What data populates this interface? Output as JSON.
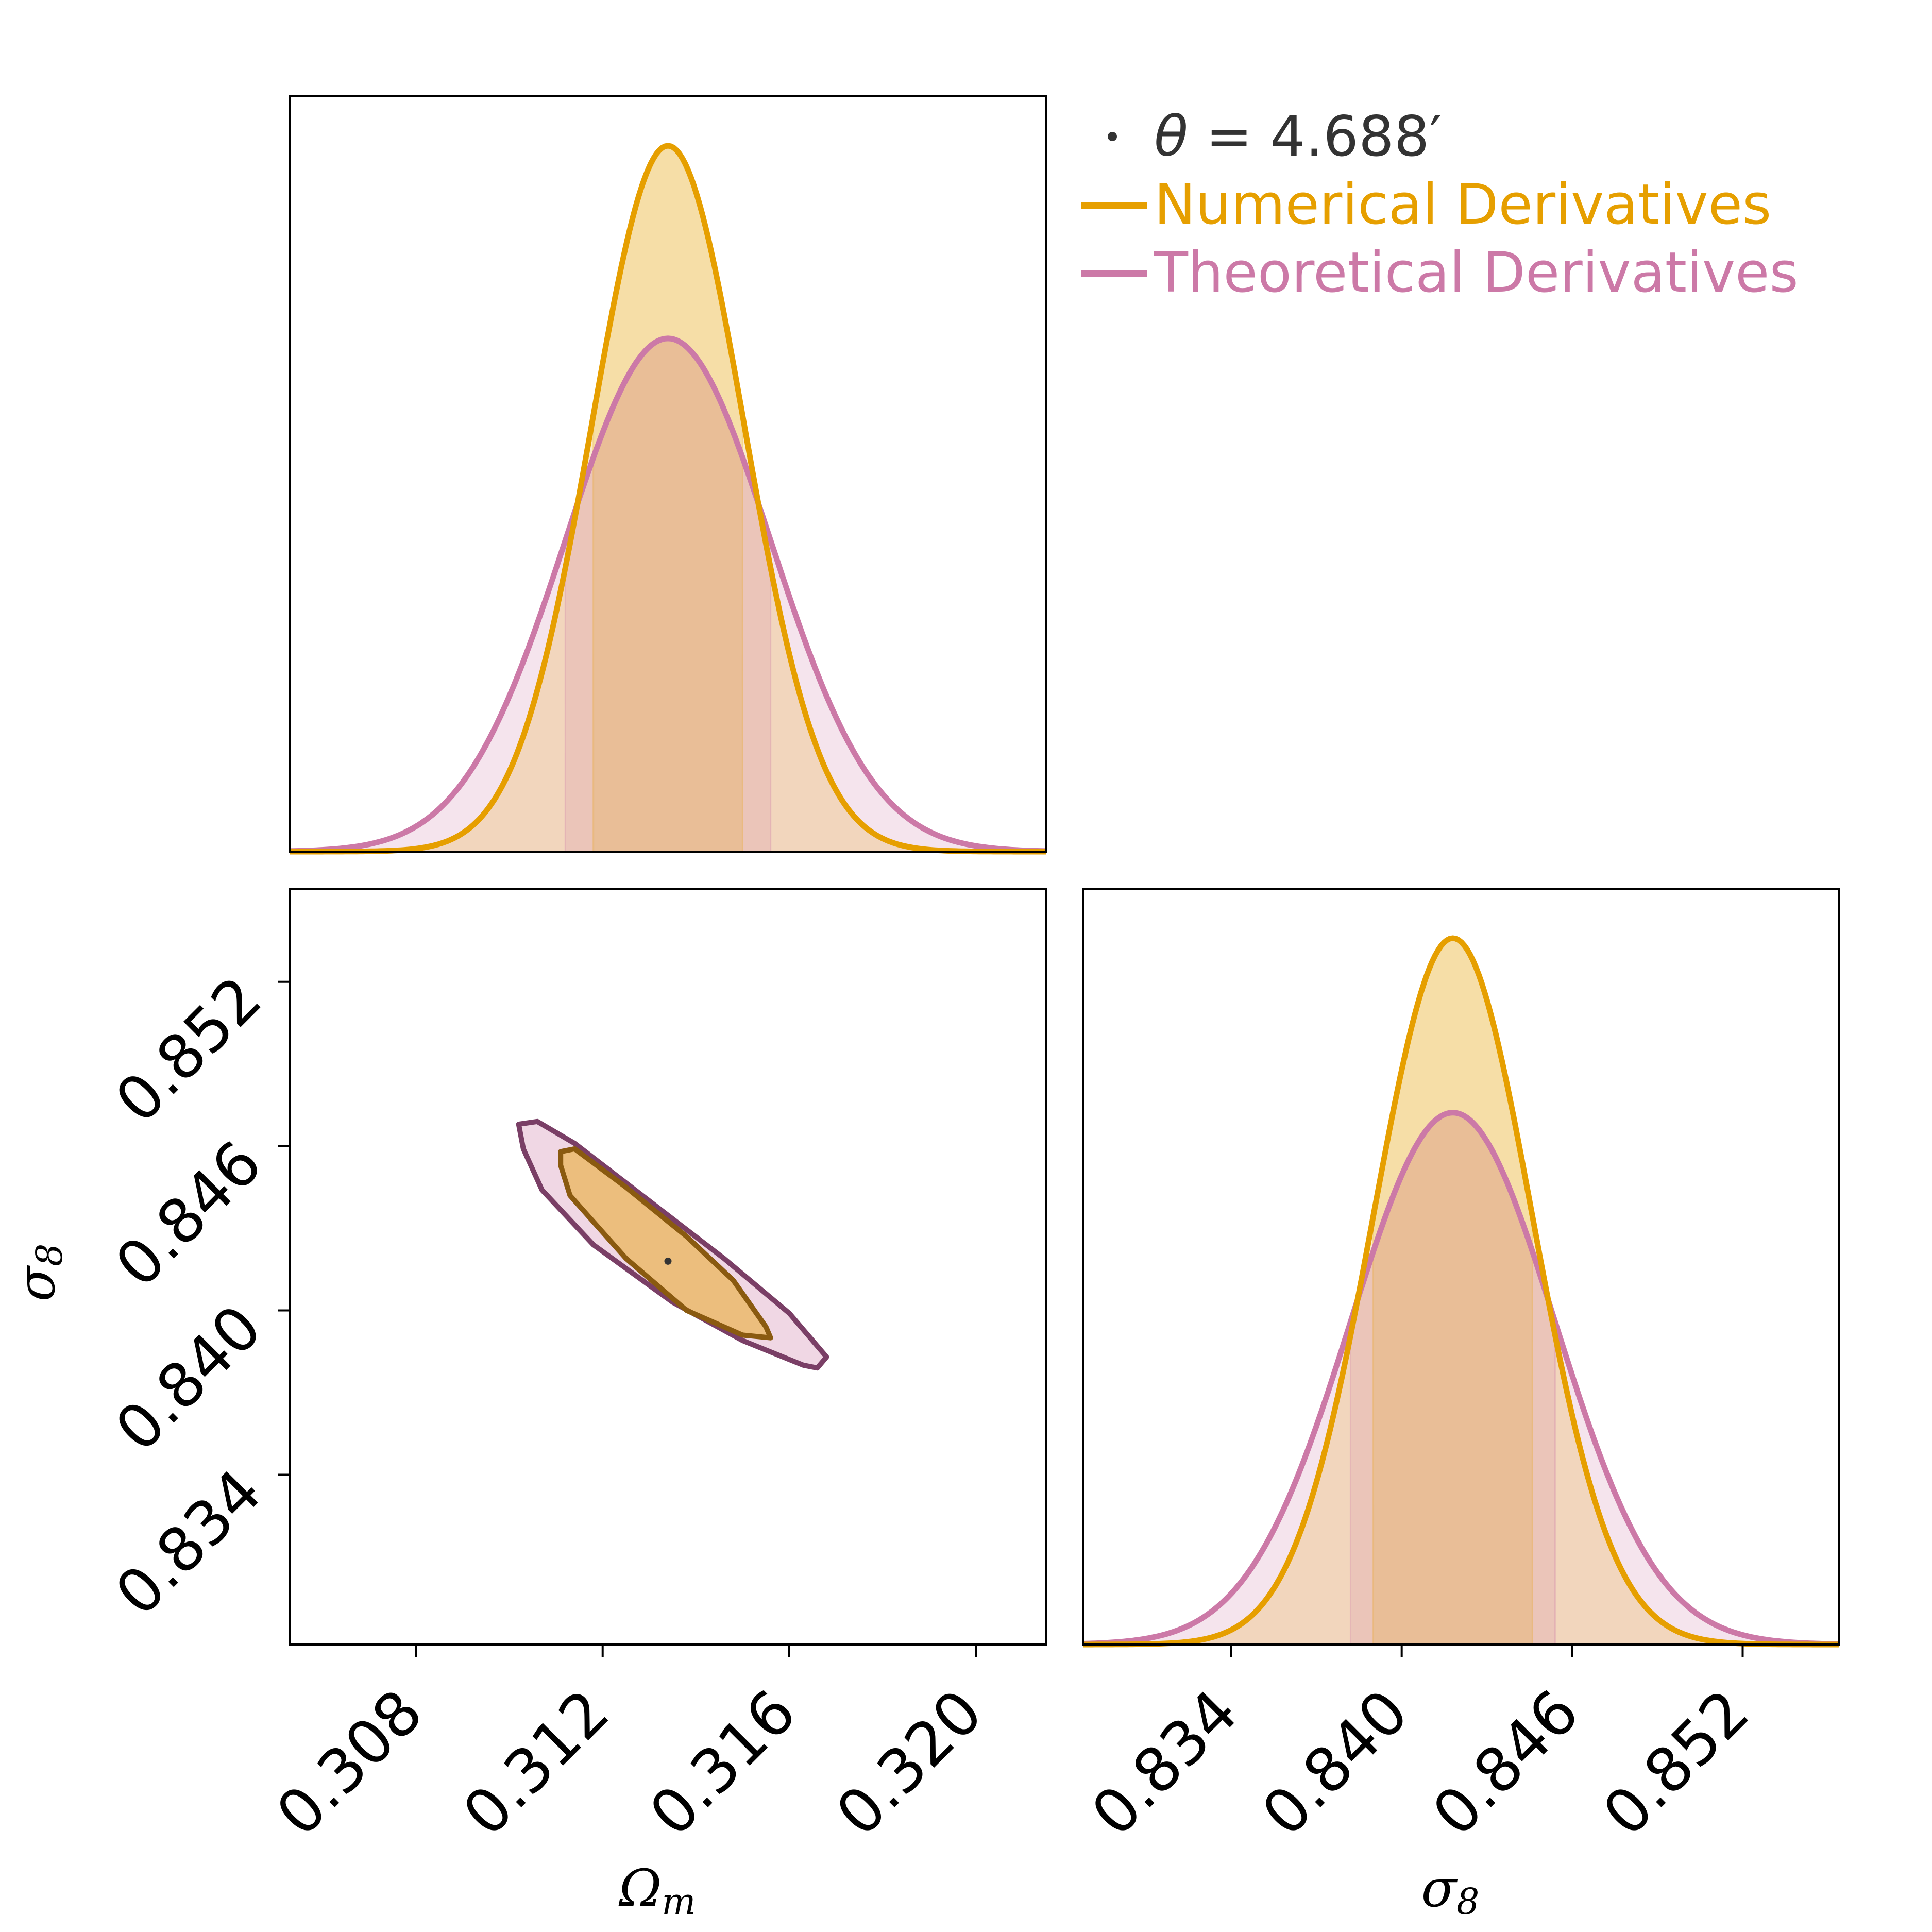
{
  "colors": {
    "numerical": "#E69F00",
    "theoretical": "#CC79A7",
    "fiducial_marker": "#333333",
    "axes": "#000000"
  },
  "legend": {
    "marker_label_symbol": "θ",
    "marker_label_rest": " = 4.688′",
    "numerical_label": "Numerical Derivatives",
    "theoretical_label": "Theoretical Derivatives"
  },
  "chart_data": [
    {
      "type": "line",
      "panel": "marginal-omega-m",
      "params": {
        "omega_m": {
          "xlim": [
            0.3053,
            0.3215
          ]
        }
      },
      "series": [
        {
          "name": "Numerical Derivatives",
          "mean": 0.3134,
          "sigma": 0.00163,
          "peak": 1.0,
          "interval_68": [
            0.3118,
            0.315
          ]
        },
        {
          "name": "Theoretical Derivatives",
          "mean": 0.3134,
          "sigma": 0.0022,
          "peak": 0.727,
          "interval_68": [
            0.3112,
            0.3156
          ]
        }
      ]
    },
    {
      "type": "scatter",
      "panel": "joint-omega-m-sigma-8",
      "xlabel": "Ω_m",
      "ylabel": "σ_8",
      "xlim": [
        0.3053,
        0.3215
      ],
      "ylim": [
        0.8278,
        0.8554
      ],
      "x_ticks": [
        "0.308",
        "0.312",
        "0.316",
        "0.320"
      ],
      "y_ticks": [
        "0.834",
        "0.840",
        "0.846",
        "0.852"
      ],
      "fiducial": {
        "omega_m": 0.3134,
        "sigma_8": 0.8418
      },
      "series": [
        {
          "name": "Numerical Derivatives",
          "contour": [
            [
              0.3111,
              0.8458
            ],
            [
              0.3114,
              0.8459
            ],
            [
              0.3125,
              0.8445
            ],
            [
              0.3138,
              0.8427
            ],
            [
              0.3148,
              0.8411
            ],
            [
              0.3155,
              0.8394
            ],
            [
              0.3156,
              0.839
            ],
            [
              0.315,
              0.8391
            ],
            [
              0.3138,
              0.84
            ],
            [
              0.3125,
              0.8419
            ],
            [
              0.3113,
              0.8442
            ],
            [
              0.3111,
              0.8453
            ]
          ]
        },
        {
          "name": "Theoretical Derivatives",
          "contour": [
            [
              0.3102,
              0.8468
            ],
            [
              0.3106,
              0.8469
            ],
            [
              0.3114,
              0.8461
            ],
            [
              0.313,
              0.844
            ],
            [
              0.3146,
              0.8419
            ],
            [
              0.316,
              0.8399
            ],
            [
              0.3168,
              0.8383
            ],
            [
              0.3166,
              0.8379
            ],
            [
              0.3163,
              0.838
            ],
            [
              0.315,
              0.8389
            ],
            [
              0.3135,
              0.8403
            ],
            [
              0.3118,
              0.8424
            ],
            [
              0.3107,
              0.8444
            ],
            [
              0.3103,
              0.8459
            ]
          ]
        }
      ]
    },
    {
      "type": "line",
      "panel": "marginal-sigma-8",
      "xlabel": "σ_8",
      "xlim": [
        0.8288,
        0.8554
      ],
      "x_ticks": [
        "0.834",
        "0.840",
        "0.846",
        "0.852"
      ],
      "series": [
        {
          "name": "Numerical Derivatives",
          "mean": 0.8418,
          "sigma": 0.0028,
          "peak": 1.0,
          "interval_68": [
            0.839,
            0.8446
          ]
        },
        {
          "name": "Theoretical Derivatives",
          "mean": 0.8418,
          "sigma": 0.0036,
          "peak": 0.753,
          "interval_68": [
            0.8382,
            0.8454
          ]
        }
      ]
    }
  ]
}
